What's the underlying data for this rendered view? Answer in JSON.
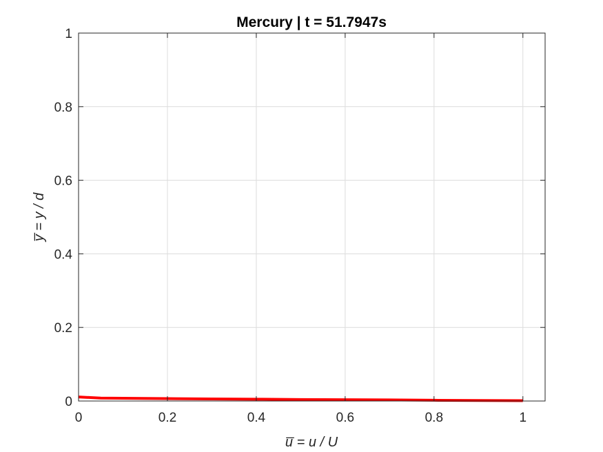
{
  "chart_data": {
    "type": "line",
    "title": "Mercury | t = 51.7947s",
    "xlabel": "u̅ = u / U",
    "ylabel": "y̅ = y / d",
    "xlim": [
      0,
      1.05
    ],
    "ylim": [
      0,
      1
    ],
    "xticks": [
      "0",
      "0.2",
      "0.4",
      "0.6",
      "0.8",
      "1"
    ],
    "yticks": [
      "0",
      "0.2",
      "0.4",
      "0.6",
      "0.8",
      "1"
    ],
    "grid": true,
    "series": [
      {
        "color": "#ff0000",
        "x": [
          0,
          0.05,
          0.1,
          0.2,
          0.3,
          0.4,
          0.5,
          0.6,
          0.7,
          0.8,
          0.9,
          1.0
        ],
        "y": [
          0.011,
          0.008,
          0.0075,
          0.0065,
          0.0055,
          0.005,
          0.004,
          0.0035,
          0.003,
          0.002,
          0.0015,
          0.001
        ]
      }
    ]
  }
}
